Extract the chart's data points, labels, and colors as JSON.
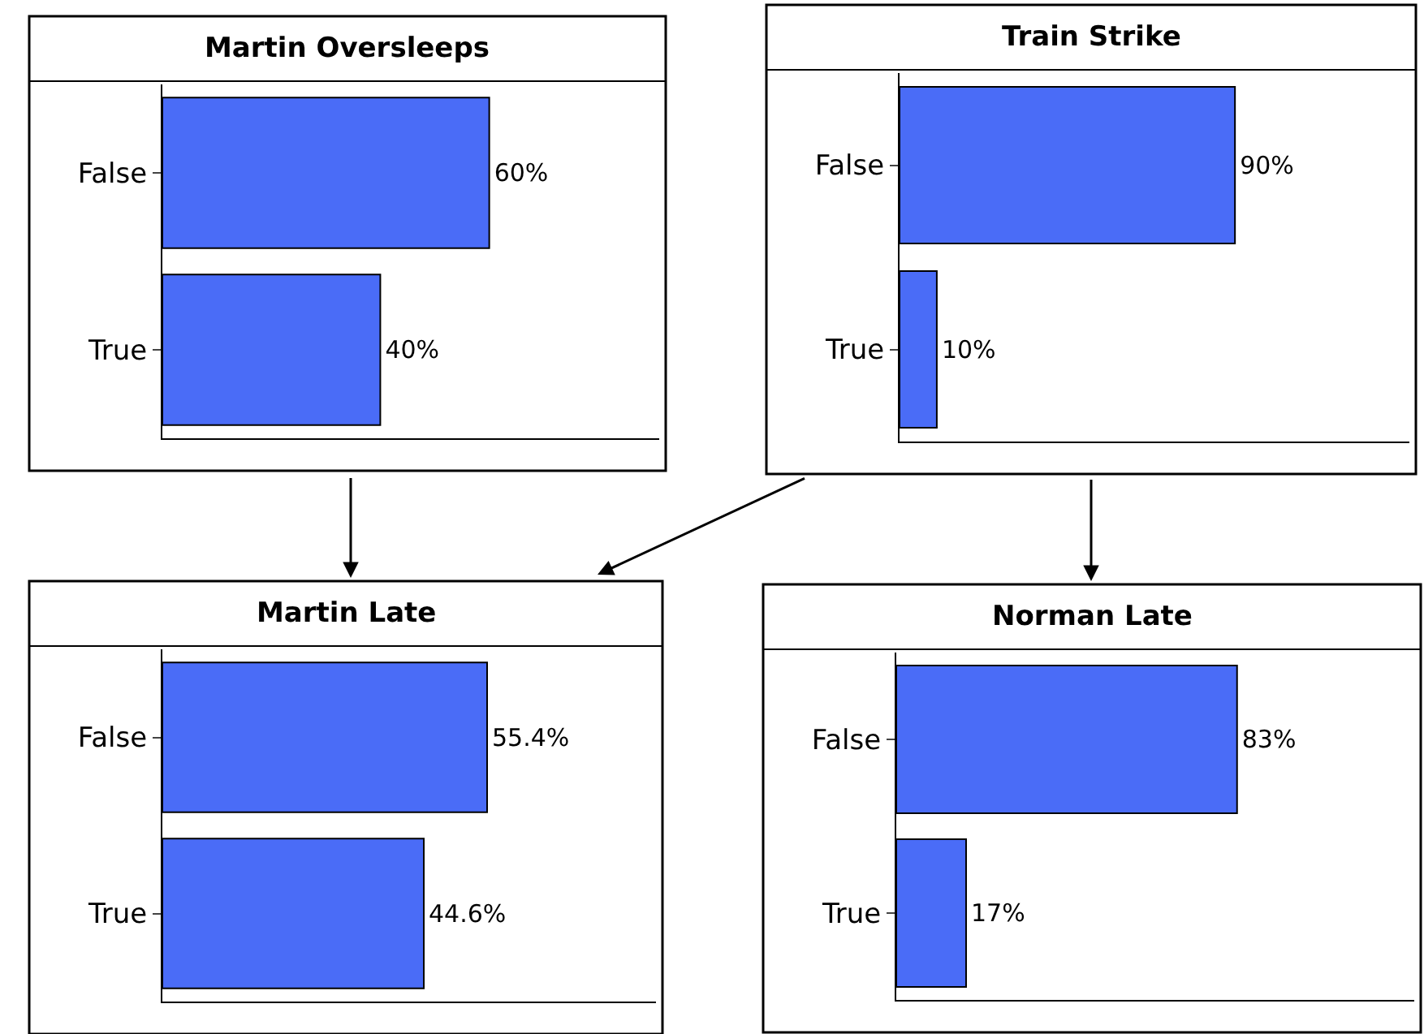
{
  "chart_data": [
    {
      "type": "bar",
      "orientation": "horizontal",
      "title": "Martin Oversleeps",
      "categories": [
        "False",
        "True"
      ],
      "values": [
        60,
        40
      ],
      "value_labels": [
        "60%",
        "40%"
      ],
      "color": "#4a6cf7",
      "tick_labels": "y"
    },
    {
      "type": "bar",
      "orientation": "horizontal",
      "title": "Train Strike",
      "categories": [
        "False",
        "True"
      ],
      "values": [
        90,
        10
      ],
      "value_labels": [
        "90%",
        "10%"
      ],
      "color": "#4a6cf7",
      "tick_labels": "y"
    },
    {
      "type": "bar",
      "orientation": "horizontal",
      "title": "Martin Late",
      "categories": [
        "False",
        "True"
      ],
      "values": [
        55.4,
        44.6
      ],
      "value_labels": [
        "55.4%",
        "44.6%"
      ],
      "color": "#4a6cf7",
      "tick_labels": "y"
    },
    {
      "type": "bar",
      "orientation": "horizontal",
      "title": "Norman Late",
      "categories": [
        "False",
        "True"
      ],
      "values": [
        83,
        17
      ],
      "value_labels": [
        "83%",
        "17%"
      ],
      "color": "#4a6cf7",
      "tick_labels": "y"
    }
  ]
}
